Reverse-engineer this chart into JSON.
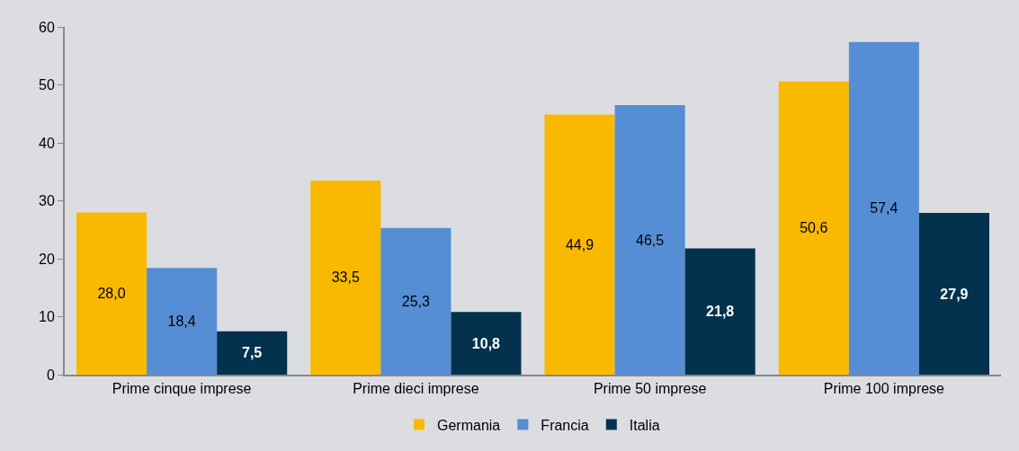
{
  "chart_data": {
    "type": "bar",
    "categories": [
      "Prime cinque imprese",
      "Prime dieci imprese",
      "Prime 50 imprese",
      "Prime 100 imprese"
    ],
    "series": [
      {
        "name": "Germania",
        "color": "#f9b900",
        "values": [
          28.0,
          33.5,
          44.9,
          50.6
        ],
        "value_labels": [
          "28,0",
          "33,5",
          "44,9",
          "50,6"
        ]
      },
      {
        "name": "Francia",
        "color": "#558ed5",
        "values": [
          18.4,
          25.3,
          46.5,
          57.4
        ],
        "value_labels": [
          "18,4",
          "25,3",
          "46,5",
          "57,4"
        ]
      },
      {
        "name": "Italia",
        "color": "#02324d",
        "values": [
          7.5,
          10.8,
          21.8,
          27.9
        ],
        "value_labels": [
          "7,5",
          "10,8",
          "21,8",
          "27,9"
        ]
      }
    ],
    "ylim": [
      0,
      60
    ],
    "yticks": [
      0,
      10,
      20,
      30,
      40,
      50,
      60
    ],
    "grid": false,
    "legend": "bottom"
  }
}
